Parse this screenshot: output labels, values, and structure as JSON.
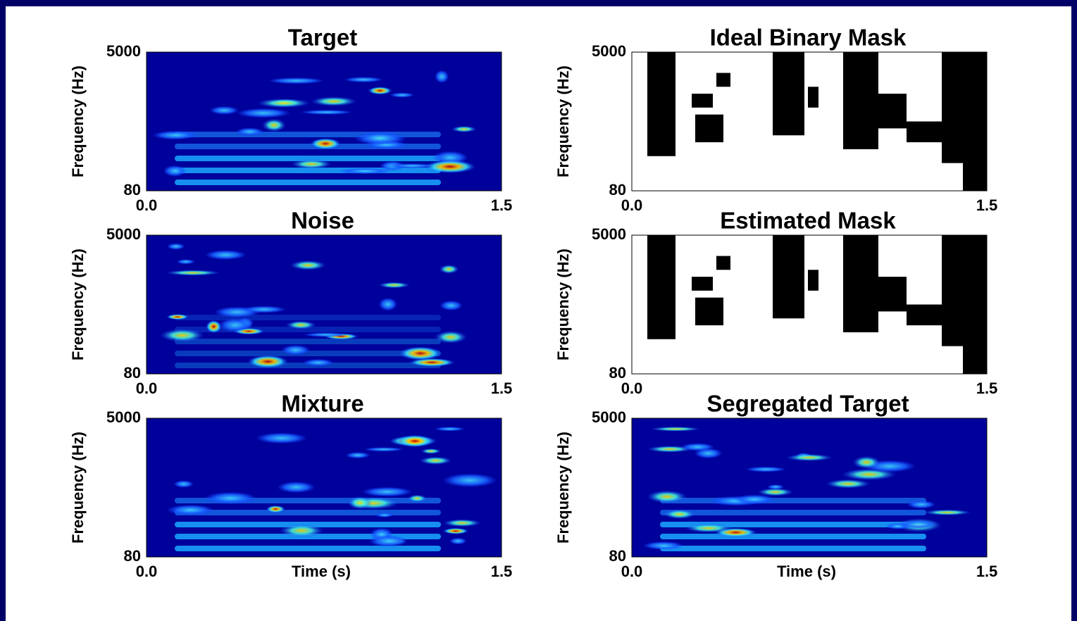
{
  "chart_data": [
    {
      "type": "spectrogram",
      "title": "Target",
      "ylabel": "Frequency (Hz)",
      "xlim": [
        0,
        1.5
      ],
      "xticks": [
        {
          "value": 0,
          "label": "0.0"
        },
        1.5
      ],
      "ylim": [
        80,
        5000
      ],
      "yticks": [
        80,
        5000
      ],
      "log_y": true
    },
    {
      "type": "binary-mask",
      "title": "Ideal Binary Mask",
      "ylabel": "Frequency (Hz)",
      "xlim": [
        0,
        1.5
      ],
      "xticks": [
        {
          "value": 0,
          "label": "0.0"
        },
        1.5
      ],
      "ylim": [
        80,
        5000
      ],
      "yticks": [
        80,
        5000
      ],
      "log_y": true
    },
    {
      "type": "spectrogram",
      "title": "Noise",
      "ylabel": "Frequency (Hz)",
      "xlim": [
        0,
        1.5
      ],
      "xticks": [
        {
          "value": 0,
          "label": "0.0"
        },
        1.5
      ],
      "ylim": [
        80,
        5000
      ],
      "yticks": [
        80,
        5000
      ],
      "log_y": true
    },
    {
      "type": "binary-mask",
      "title": "Estimated Mask",
      "ylabel": "Frequency (Hz)",
      "xlim": [
        0,
        1.5
      ],
      "xticks": [
        {
          "value": 0,
          "label": "0.0"
        },
        1.5
      ],
      "ylim": [
        80,
        5000
      ],
      "yticks": [
        80,
        5000
      ],
      "log_y": true
    },
    {
      "type": "spectrogram",
      "title": "Mixture",
      "xlabel": "Time (s)",
      "ylabel": "Frequency (Hz)",
      "xlim": [
        0,
        1.5
      ],
      "xticks": [
        {
          "value": 0,
          "label": "0.0"
        },
        1.5
      ],
      "ylim": [
        80,
        5000
      ],
      "yticks": [
        80,
        5000
      ],
      "log_y": true
    },
    {
      "type": "spectrogram",
      "title": "Segregated Target",
      "xlabel": "Time (s)",
      "ylabel": "Frequency (Hz)",
      "xlim": [
        0,
        1.5
      ],
      "xticks": [
        {
          "value": 0,
          "label": "0.0"
        },
        1.5
      ],
      "ylim": [
        80,
        5000
      ],
      "yticks": [
        80,
        5000
      ],
      "log_y": true
    }
  ]
}
